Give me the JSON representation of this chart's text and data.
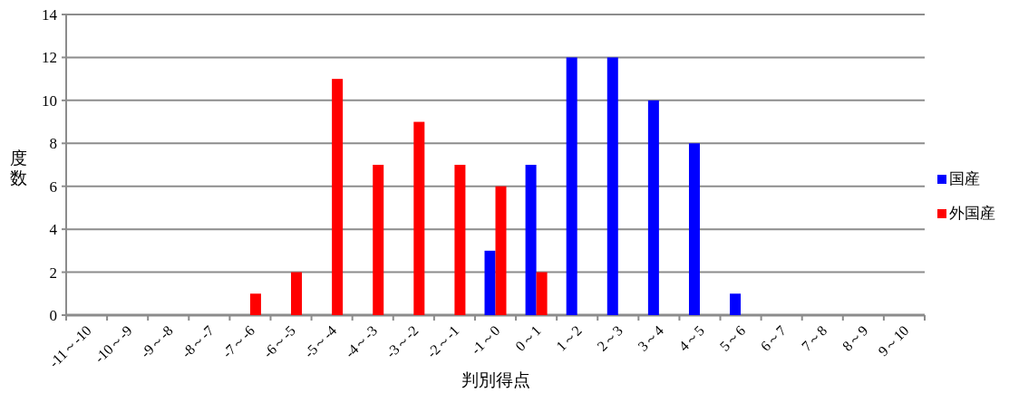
{
  "chart_data": {
    "type": "bar",
    "xlabel": "判別得点",
    "ylabel": "度数",
    "categories": [
      "-11～-10",
      "-10～-9",
      "-9～-8",
      "-8～-7",
      "-7～-6",
      "-6～-5",
      "-5～-4",
      "-4～-3",
      "-3～-2",
      "-2～-1",
      "-1～0",
      "0～1",
      "1～2",
      "2～3",
      "3～4",
      "4～5",
      "5～6",
      "6～7",
      "7～8",
      "8～9",
      "9～10"
    ],
    "series": [
      {
        "name": "国産",
        "color": "#0000ff",
        "values": [
          0,
          0,
          0,
          0,
          0,
          0,
          0,
          0,
          0,
          0,
          3,
          7,
          12,
          12,
          10,
          8,
          1,
          0,
          0,
          0,
          0
        ]
      },
      {
        "name": "外国産",
        "color": "#ff0000",
        "values": [
          0,
          0,
          0,
          0,
          1,
          2,
          11,
          7,
          9,
          7,
          6,
          2,
          0,
          0,
          0,
          0,
          0,
          0,
          0,
          0,
          0
        ]
      }
    ],
    "ylim": [
      0,
      14
    ],
    "yticks": [
      0,
      2,
      4,
      6,
      8,
      10,
      12,
      14
    ],
    "grid": "y",
    "legend": "right"
  }
}
